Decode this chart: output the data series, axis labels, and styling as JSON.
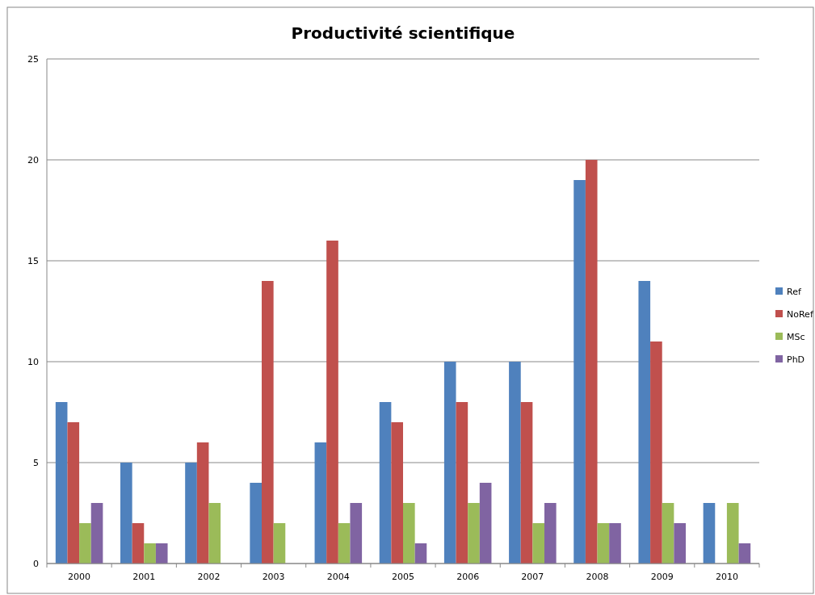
{
  "chart_data": {
    "type": "bar",
    "title": "Productivité scientifique",
    "categories": [
      "2000",
      "2001",
      "2002",
      "2003",
      "2004",
      "2005",
      "2006",
      "2007",
      "2008",
      "2009",
      "2010"
    ],
    "series": [
      {
        "name": "Ref",
        "color": "#4f81bd",
        "values": [
          8,
          5,
          5,
          4,
          6,
          8,
          10,
          10,
          19,
          14,
          3
        ]
      },
      {
        "name": "NoRef",
        "color": "#c0504d",
        "values": [
          7,
          2,
          6,
          14,
          16,
          7,
          8,
          8,
          20,
          11,
          0
        ]
      },
      {
        "name": "MSc",
        "color": "#9bbb59",
        "values": [
          2,
          1,
          3,
          2,
          2,
          3,
          3,
          2,
          2,
          3,
          3
        ]
      },
      {
        "name": "PhD",
        "color": "#8064a2",
        "values": [
          3,
          1,
          0,
          0,
          3,
          1,
          4,
          3,
          2,
          2,
          1
        ]
      }
    ],
    "ylim": [
      0,
      25
    ],
    "yticks": [
      0,
      5,
      10,
      15,
      20,
      25
    ],
    "grid": "y",
    "legend": "right"
  }
}
